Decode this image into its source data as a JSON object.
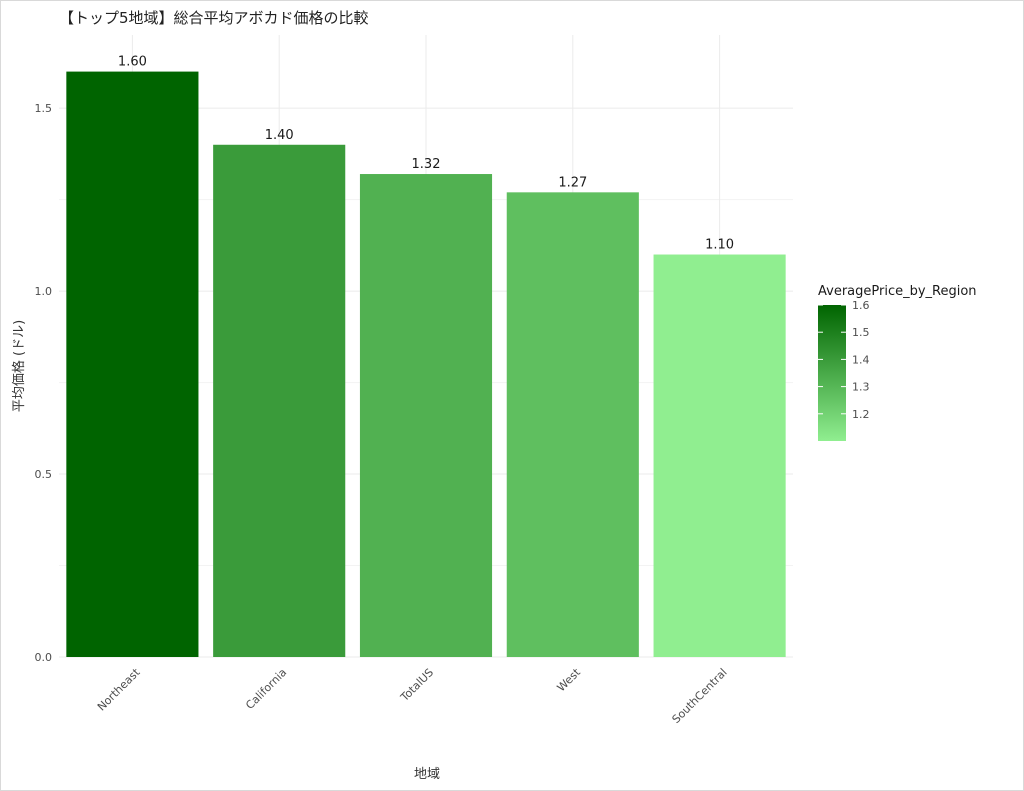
{
  "chart_data": {
    "type": "bar",
    "title": "【トップ5地域】総合平均アボカド価格の比較",
    "xlabel": "地域",
    "ylabel": "平均価格 (ドル)",
    "categories": [
      "Northeast",
      "California",
      "TotalUS",
      "West",
      "SouthCentral"
    ],
    "values": [
      1.6,
      1.4,
      1.32,
      1.27,
      1.1
    ],
    "value_labels": [
      "1.60",
      "1.40",
      "1.32",
      "1.27",
      "1.10"
    ],
    "ylim": [
      0,
      1.7
    ],
    "yticks": [
      0.0,
      0.5,
      1.0,
      1.5
    ],
    "ytick_labels": [
      "0.0",
      "0.5",
      "1.0",
      "1.5"
    ],
    "grid": true,
    "x_tick_rotation": 45,
    "legend": {
      "title": "AveragePrice_by_Region",
      "placement": "right",
      "range": [
        1.1,
        1.6
      ],
      "ticks": [
        1.2,
        1.3,
        1.4,
        1.5,
        1.6
      ],
      "tick_labels": [
        "1.2",
        "1.3",
        "1.4",
        "1.5",
        "1.6"
      ],
      "color_low": "#90ee90",
      "color_high": "#006400"
    }
  }
}
